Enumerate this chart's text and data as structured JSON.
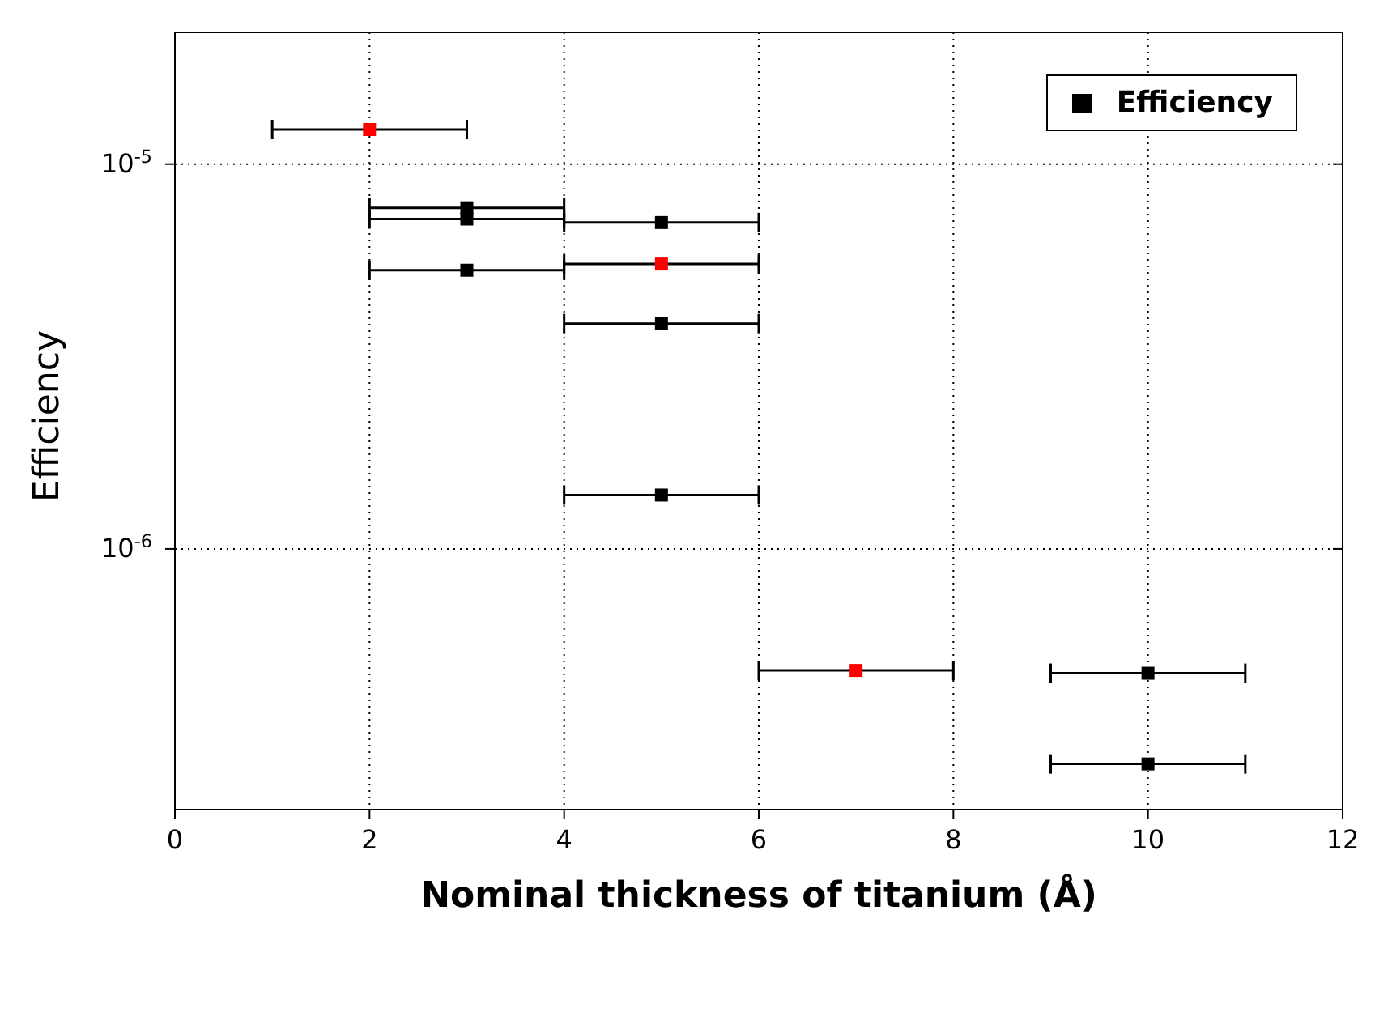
{
  "chart_data": {
    "type": "scatter",
    "xlabel": "Nominal thickness of titanium (Å)",
    "ylabel": "Efficiency",
    "x": [
      2,
      3,
      3,
      3,
      5,
      5,
      5,
      5,
      7,
      10,
      10
    ],
    "series": [
      {
        "name": "Efficiency",
        "color": "#000000",
        "values": [
          1.23e-05,
          7.7e-06,
          7.2e-06,
          5.3e-06,
          7.05e-06,
          5.5e-06,
          3.85e-06,
          1.38e-06,
          4.83e-07,
          4.75e-07,
          2.76e-07
        ],
        "colors": [
          "#ff0000",
          "#000000",
          "#000000",
          "#000000",
          "#000000",
          "#ff0000",
          "#000000",
          "#000000",
          "#ff0000",
          "#000000",
          "#000000"
        ],
        "xerrors": [
          1,
          1,
          1,
          1,
          1,
          1,
          1,
          1,
          1,
          1,
          1
        ]
      }
    ],
    "xlim": [
      0,
      12
    ],
    "xticks": [
      0,
      2,
      4,
      6,
      8,
      10,
      12
    ],
    "ylim": [
      2.1e-07,
      2.2e-05
    ],
    "yticks": [
      {
        "value": 1e-06,
        "label": "10$^{-6}$"
      },
      {
        "value": 1e-05,
        "label": "10$^{-5}$"
      }
    ],
    "log": "y",
    "grid": true,
    "legend": "top right",
    "marker": "square"
  }
}
